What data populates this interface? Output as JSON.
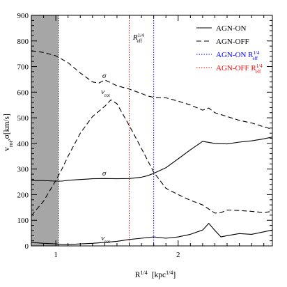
{
  "chart_data": {
    "type": "line",
    "xlabel": "R",
    "xlabel_sup": "1/4",
    "xlabel_unit": "[kpc",
    "xlabel_unit_sup": "1/4",
    "xlabel_unit_close": "]",
    "ylabel": "v",
    "ylabel_sub1": "rot",
    "ylabel_mid": ",σ[km/s]",
    "xlim": [
      0.8,
      2.77
    ],
    "ylim": [
      0,
      900
    ],
    "x_ticks": [
      {
        "value": 1,
        "label": "1"
      },
      {
        "value": 2,
        "label": "2"
      }
    ],
    "x_minor_ticks": [
      0.9,
      1.1,
      1.2,
      1.3,
      1.4,
      1.5,
      1.6,
      1.7,
      1.8,
      1.9,
      2.1,
      2.2,
      2.3,
      2.4,
      2.5,
      2.6,
      2.7
    ],
    "y_ticks": [
      {
        "value": 0,
        "label": "0"
      },
      {
        "value": 100,
        "label": "100"
      },
      {
        "value": 200,
        "label": "200"
      },
      {
        "value": 300,
        "label": "300"
      },
      {
        "value": 400,
        "label": "400"
      },
      {
        "value": 500,
        "label": "500"
      },
      {
        "value": 600,
        "label": "600"
      },
      {
        "value": 700,
        "label": "700"
      },
      {
        "value": 800,
        "label": "800"
      },
      {
        "value": 900,
        "label": "900"
      }
    ],
    "y_minor_step": 20,
    "grid": false,
    "shaded_region": {
      "x0": 0.8,
      "x1": 1.02,
      "color": "#a6a6a6"
    },
    "series": [
      {
        "name": "AGN-ON",
        "key": "on_sigma",
        "style": "solid",
        "color": "#000000",
        "x": [
          0.8,
          0.9,
          1.0,
          1.05,
          1.1,
          1.2,
          1.3,
          1.4,
          1.5,
          1.6,
          1.7,
          1.75,
          1.8,
          1.9,
          2.0,
          2.1,
          2.2,
          2.3,
          2.4,
          2.5,
          2.6,
          2.7,
          2.77
        ],
        "y": [
          255,
          255,
          253,
          253,
          256,
          259,
          262,
          263,
          262,
          263,
          268,
          274,
          283,
          305,
          340,
          375,
          408,
          400,
          398,
          405,
          410,
          418,
          425
        ]
      },
      {
        "key": "on_vrot",
        "style": "solid",
        "color": "#000000",
        "x": [
          0.8,
          0.9,
          1.0,
          1.05,
          1.1,
          1.2,
          1.3,
          1.4,
          1.5,
          1.6,
          1.7,
          1.8,
          1.9,
          2.0,
          2.1,
          2.2,
          2.25,
          2.3,
          2.35,
          2.4,
          2.5,
          2.6,
          2.7,
          2.77
        ],
        "y": [
          14,
          10,
          8,
          6,
          5,
          8,
          10,
          14,
          18,
          25,
          30,
          35,
          30,
          35,
          45,
          62,
          88,
          60,
          35,
          40,
          48,
          45,
          55,
          62
        ]
      },
      {
        "name": "AGN-OFF",
        "key": "off_sigma",
        "style": "dashed",
        "color": "#000000",
        "x": [
          0.8,
          0.9,
          1.0,
          1.1,
          1.2,
          1.3,
          1.35,
          1.4,
          1.5,
          1.6,
          1.7,
          1.75,
          1.8,
          1.9,
          2.0,
          2.1,
          2.2,
          2.25,
          2.3,
          2.4,
          2.5,
          2.6,
          2.7,
          2.77
        ],
        "y": [
          762,
          755,
          742,
          715,
          675,
          640,
          635,
          648,
          625,
          612,
          595,
          585,
          580,
          578,
          565,
          550,
          530,
          538,
          520,
          505,
          490,
          480,
          465,
          455
        ]
      },
      {
        "key": "off_vrot",
        "style": "dashed",
        "color": "#000000",
        "x": [
          0.8,
          0.9,
          1.0,
          1.05,
          1.1,
          1.2,
          1.3,
          1.4,
          1.45,
          1.5,
          1.6,
          1.7,
          1.8,
          1.9,
          2.0,
          2.1,
          2.2,
          2.3,
          2.35,
          2.4,
          2.5,
          2.6,
          2.7,
          2.77
        ],
        "y": [
          118,
          175,
          255,
          300,
          350,
          440,
          505,
          545,
          570,
          555,
          470,
          380,
          288,
          225,
          200,
          178,
          160,
          128,
          130,
          140,
          138,
          135,
          130,
          135
        ]
      }
    ],
    "vlines": [
      {
        "name": "AGN-ON R_eff^1/4",
        "x": 1.8,
        "color": "#0000ff",
        "style": "dotted"
      },
      {
        "name": "AGN-OFF R_eff^1/4",
        "x": 1.6,
        "color": "#ff0000",
        "style": "dotted"
      }
    ],
    "annotations": [
      {
        "key": "sigma_off",
        "text": "σ",
        "x": 1.38,
        "y": 655
      },
      {
        "key": "vrot_off",
        "text": "v",
        "sub": "rot",
        "x": 1.37,
        "y": 593
      },
      {
        "key": "sigma_on",
        "text": "σ",
        "x": 1.38,
        "y": 274
      },
      {
        "key": "vrot_on",
        "text": "v",
        "sub": "rot",
        "x": 1.37,
        "y": 22
      },
      {
        "key": "reff",
        "text": "R",
        "sup": "1/4",
        "sub": "eff",
        "x": 1.63,
        "y": 805
      }
    ],
    "legend": {
      "position": "top-right",
      "entries": [
        {
          "label": "AGN-ON",
          "style": "solid",
          "color": "#000000"
        },
        {
          "label": "AGN-OFF",
          "style": "dashed",
          "color": "#000000"
        },
        {
          "label": "AGN-ON R",
          "sup": "1/4",
          "sub": "eff",
          "style": "dotted",
          "color": "#0000ff"
        },
        {
          "label": "AGN-OFF R",
          "sup": "1/4",
          "sub": "eff",
          "style": "dotted",
          "color": "#ff0000"
        }
      ]
    }
  }
}
